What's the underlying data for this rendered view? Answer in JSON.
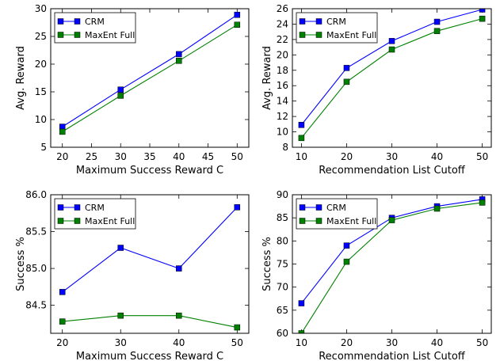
{
  "colors": {
    "crm": "#0000ff",
    "maxent": "#008000"
  },
  "chart_data": [
    {
      "type": "line",
      "xlabel": "Maximum Success Reward C",
      "ylabel": "Avg. Reward",
      "x": [
        20,
        30,
        40,
        50
      ],
      "xticks": [
        20,
        25,
        30,
        35,
        40,
        45,
        50
      ],
      "yticks": [
        5,
        10,
        15,
        20,
        25,
        30
      ],
      "xlim": [
        18,
        52
      ],
      "ylim": [
        5,
        30
      ],
      "legend": "top-left",
      "series": [
        {
          "name": "CRM",
          "values": [
            8.7,
            15.4,
            21.8,
            28.9
          ]
        },
        {
          "name": "MaxEnt Full",
          "values": [
            7.8,
            14.3,
            20.6,
            27.1
          ]
        }
      ]
    },
    {
      "type": "line",
      "xlabel": "Recommendation List Cutoff",
      "ylabel": "Avg. Reward",
      "x": [
        10,
        20,
        30,
        40,
        50
      ],
      "xticks": [
        10,
        20,
        30,
        40,
        50
      ],
      "yticks": [
        8,
        10,
        12,
        14,
        16,
        18,
        20,
        22,
        24,
        26
      ],
      "xlim": [
        8,
        52
      ],
      "ylim": [
        8,
        26
      ],
      "legend": "top-left",
      "series": [
        {
          "name": "CRM",
          "values": [
            10.9,
            18.3,
            21.8,
            24.3,
            25.9
          ]
        },
        {
          "name": "MaxEnt Full",
          "values": [
            9.2,
            16.5,
            20.7,
            23.1,
            24.7
          ]
        }
      ]
    },
    {
      "type": "line",
      "xlabel": "Maximum Success Reward C",
      "ylabel": "Success %",
      "x": [
        20,
        30,
        40,
        50
      ],
      "xticks": [
        20,
        30,
        40,
        50
      ],
      "yticks": [
        84.5,
        85.0,
        85.5,
        86.0
      ],
      "ytick_labels": [
        "84.5",
        "85.0",
        "85.5",
        "86.0"
      ],
      "xlim": [
        18,
        52
      ],
      "ylim": [
        84.12,
        86.0
      ],
      "legend": "top-left",
      "series": [
        {
          "name": "CRM",
          "values": [
            84.68,
            85.28,
            85.0,
            85.83
          ]
        },
        {
          "name": "MaxEnt Full",
          "values": [
            84.28,
            84.36,
            84.36,
            84.2
          ]
        }
      ]
    },
    {
      "type": "line",
      "xlabel": "Recommendation List Cutoff",
      "ylabel": "Success %",
      "x": [
        10,
        20,
        30,
        40,
        50
      ],
      "xticks": [
        10,
        20,
        30,
        40,
        50
      ],
      "yticks": [
        60,
        65,
        70,
        75,
        80,
        85,
        90
      ],
      "xlim": [
        8,
        52
      ],
      "ylim": [
        60,
        90
      ],
      "legend": "top-left",
      "series": [
        {
          "name": "CRM",
          "values": [
            66.5,
            79.0,
            85.0,
            87.5,
            89.0
          ]
        },
        {
          "name": "MaxEnt Full",
          "values": [
            60.0,
            75.5,
            84.5,
            87.0,
            88.3
          ]
        }
      ]
    }
  ]
}
